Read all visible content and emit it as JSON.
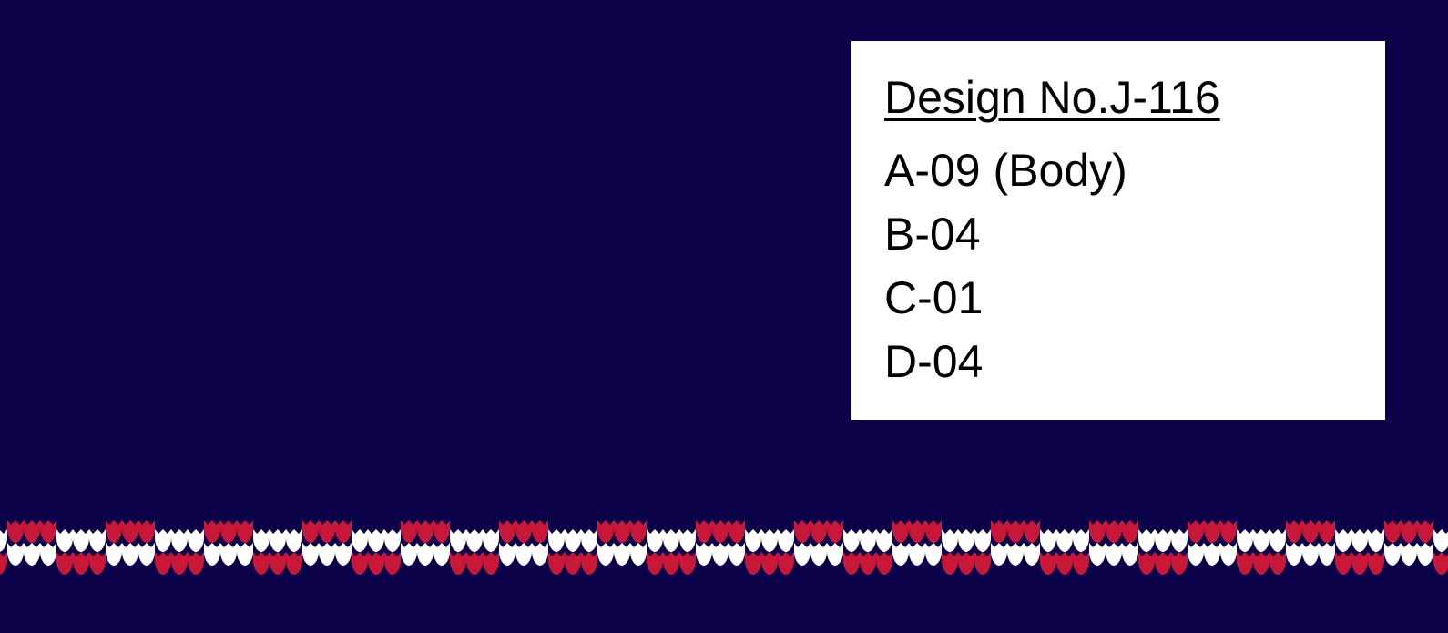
{
  "design": {
    "title": "Design No.J-116",
    "colors_list": [
      "A-09 (Body)",
      "B-04",
      "C-01",
      "D-04"
    ]
  },
  "colors": {
    "background": "#0b0249",
    "card": "#ffffff",
    "border_red": "#c8183a",
    "border_white": "#ffffff"
  }
}
